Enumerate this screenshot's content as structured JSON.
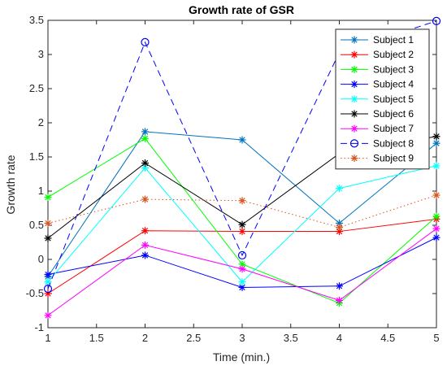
{
  "chart_data": {
    "type": "line",
    "title": "Growth rate of GSR",
    "xlabel": "Time (min.)",
    "ylabel": "Growth rate",
    "xlim": [
      1,
      5
    ],
    "ylim": [
      -1,
      3.5
    ],
    "xticks": [
      "1",
      "1.5",
      "2",
      "2.5",
      "3",
      "3.5",
      "4",
      "4.5",
      "5"
    ],
    "yticks": [
      "-1",
      "-0.5",
      "0",
      "0.5",
      "1",
      "1.5",
      "2",
      "2.5",
      "3",
      "3.5"
    ],
    "grid": false,
    "legend_position": "top-right",
    "x": [
      1,
      2,
      3,
      4,
      5
    ],
    "series": [
      {
        "name": "Subject 1",
        "color": "#0072BD",
        "dash": "solid",
        "marker": "asterisk",
        "values": [
          -0.25,
          1.87,
          1.75,
          0.53,
          1.7
        ]
      },
      {
        "name": "Subject 2",
        "color": "#FF0000",
        "dash": "solid",
        "marker": "asterisk",
        "values": [
          -0.5,
          0.42,
          0.41,
          0.41,
          0.59
        ]
      },
      {
        "name": "Subject 3",
        "color": "#00FF00",
        "dash": "solid",
        "marker": "asterisk",
        "values": [
          0.91,
          1.77,
          -0.07,
          -0.64,
          0.63
        ]
      },
      {
        "name": "Subject 4",
        "color": "#0000FF",
        "dash": "solid",
        "marker": "asterisk",
        "values": [
          -0.22,
          0.06,
          -0.41,
          -0.39,
          0.32
        ]
      },
      {
        "name": "Subject 5",
        "color": "#00FFFF",
        "dash": "solid",
        "marker": "asterisk",
        "values": [
          -0.33,
          1.34,
          -0.33,
          1.04,
          1.37
        ]
      },
      {
        "name": "Subject 6",
        "color": "#000000",
        "dash": "solid",
        "marker": "asterisk",
        "values": [
          0.31,
          1.41,
          0.51,
          1.55,
          1.8
        ]
      },
      {
        "name": "Subject 7",
        "color": "#FF00FF",
        "dash": "solid",
        "marker": "asterisk",
        "values": [
          -0.82,
          0.21,
          -0.14,
          -0.6,
          0.45
        ]
      },
      {
        "name": "Subject 8",
        "color": "#0000FF",
        "dash": "dashed",
        "marker": "circle",
        "values": [
          -0.43,
          3.18,
          0.06,
          3.03,
          3.49
        ]
      },
      {
        "name": "Subject 9",
        "color": "#D95319",
        "dash": "dotted",
        "marker": "asterisk",
        "values": [
          0.53,
          0.88,
          0.86,
          0.47,
          0.94
        ]
      }
    ]
  }
}
